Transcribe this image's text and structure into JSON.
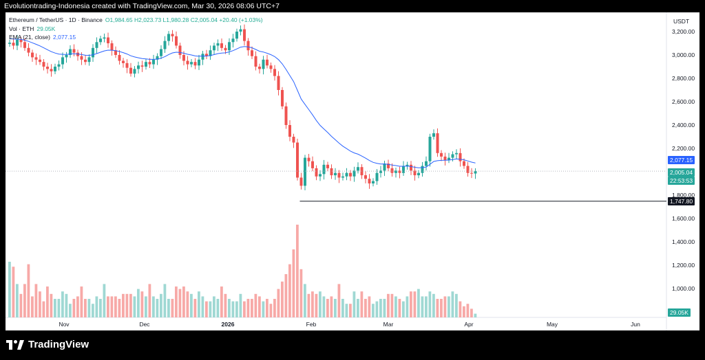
{
  "header": {
    "attribution": "Evolutiontrading-Indonesia created with TradingView.com, Mar 30, 2026 08:06 UTC+7"
  },
  "legend": {
    "symbol": "Ethereum / TetherUS · 1D · Binance",
    "ohlc": "O1,984.65  H2,023.73  L1,980.28  C2,005.04  +20.40 (+1.03%)",
    "volume_label": "Vol · ETH",
    "volume_value": "29.05K",
    "ema_label": "EMA (21, close)",
    "ema_value": "2,077.15"
  },
  "price_scale": {
    "unit": "USDT",
    "ticks": [
      "3,200.00",
      "3,000.00",
      "2,800.00",
      "2,600.00",
      "2,400.00",
      "2,200.00",
      "2,000.00",
      "1,800.00",
      "1,600.00",
      "1,400.00",
      "1,200.00",
      "1,000.00"
    ],
    "ema_tag": "2,077.15",
    "price_tag": "2,005.04",
    "countdown": "22:53:53",
    "level_tag": "1,747.80",
    "volume_tag": "29.05K"
  },
  "time_axis": {
    "labels": [
      "Nov",
      "Dec",
      "2026",
      "Feb",
      "Mar",
      "Apr",
      "May",
      "Jun"
    ]
  },
  "footer": {
    "brand": "TradingView"
  },
  "colors": {
    "up": "#26a69a",
    "down": "#ef5350",
    "ema": "#2962ff",
    "vol_up": "#9fd8d3",
    "vol_down": "#f7a9a7"
  },
  "chart_data": {
    "type": "candlestick",
    "timeframe": "1D",
    "y_range": [
      1747.8,
      3200
    ],
    "horizontal_level": 1747.8,
    "closes": [
      3105,
      3080,
      3130,
      3110,
      3060,
      3020,
      2980,
      2960,
      2940,
      2900,
      2880,
      2860,
      2900,
      2920,
      2980,
      3000,
      3050,
      3020,
      2990,
      2960,
      2940,
      2980,
      3060,
      3110,
      3140,
      3150,
      3100,
      3040,
      3000,
      2950,
      2930,
      2890,
      2840,
      2880,
      2910,
      2900,
      2940,
      2920,
      2960,
      2990,
      3050,
      3120,
      3180,
      3160,
      3080,
      3000,
      2950,
      2920,
      2940,
      2910,
      2960,
      3010,
      2990,
      3040,
      3080,
      3100,
      3060,
      3040,
      3110,
      3140,
      3200,
      3220,
      3120,
      3040,
      2990,
      2900,
      2880,
      2960,
      2910,
      2880,
      2820,
      2700,
      2560,
      2400,
      2300,
      2250,
      1950,
      1880,
      2120,
      2090,
      2030,
      1960,
      1980,
      2060,
      2030,
      1970,
      1990,
      1950,
      1960,
      1990,
      1960,
      2010,
      2040,
      1970,
      1940,
      1900,
      1920,
      1990,
      2010,
      2070,
      2030,
      1990,
      2010,
      1990,
      2050,
      2060,
      2010,
      1970,
      1990,
      2050,
      2090,
      2300,
      2330,
      2160,
      2130,
      2100,
      2120,
      2150,
      2160,
      2090,
      2050,
      1990,
      1985,
      2005
    ],
    "volumes": [
      1300,
      1260,
      1120,
      1040,
      1120,
      1280,
      1020,
      1120,
      1060,
      980,
      1100,
      1040,
      1000,
      1000,
      1060,
      1040,
      960,
      1000,
      1020,
      1100,
      1000,
      1000,
      960,
      1020,
      1000,
      1120,
      1020,
      1020,
      1020,
      1000,
      1040,
      1040,
      1040,
      1020,
      1080,
      1060,
      1020,
      1120,
      1020,
      1000,
      1040,
      1120,
      1000,
      1000,
      1100,
      1080,
      1100,
      1060,
      1040,
      1000,
      1060,
      1020,
      980,
      980,
      1020,
      1000,
      1100,
      1040,
      1000,
      980,
      980,
      1040,
      980,
      1000,
      1000,
      1040,
      1020,
      980,
      1000,
      960,
      1000,
      1080,
      1140,
      1200,
      1280,
      1400,
      1600,
      1240,
      1120,
      1040,
      1060,
      1040,
      1060,
      1020,
      1000,
      1020,
      1000,
      1120,
      1000,
      960,
      960,
      1060,
      1000,
      1060,
      1000,
      1020,
      960,
      980,
      1000,
      1000,
      1040,
      1040,
      1020,
      1000,
      980,
      1020,
      1060,
      1060,
      1080,
      1020,
      1020,
      1060,
      1040,
      1000,
      1000,
      1020,
      1020,
      1060,
      1040,
      980,
      940,
      960,
      920,
      880
    ]
  }
}
